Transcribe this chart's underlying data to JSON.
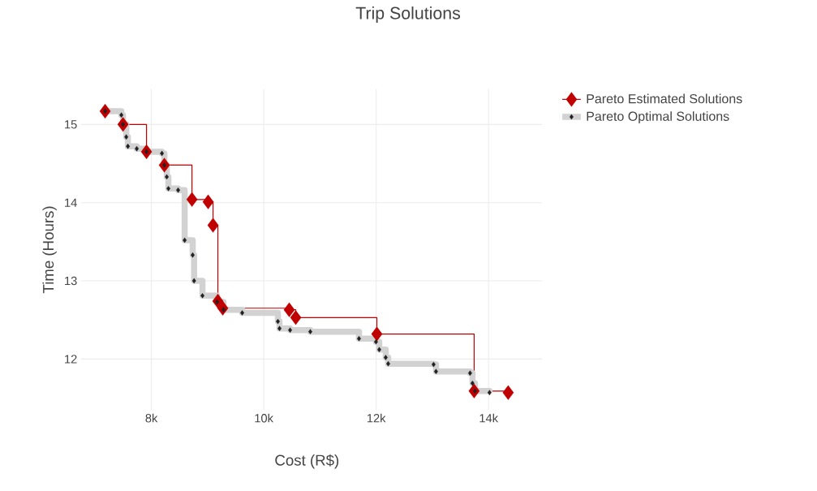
{
  "chart_data": {
    "type": "step",
    "title": "Trip Solutions",
    "xlabel": "Cost (R$)",
    "ylabel": "Time (Hours)",
    "xlim": [
      6750,
      14950
    ],
    "ylim": [
      11.35,
      15.45
    ],
    "xticks": [
      {
        "value": 8000,
        "label": "8k"
      },
      {
        "value": 10000,
        "label": "10k"
      },
      {
        "value": 12000,
        "label": "12k"
      },
      {
        "value": 14000,
        "label": "14k"
      }
    ],
    "yticks": [
      12,
      13,
      14,
      15
    ],
    "grid": true,
    "legend": "top right",
    "marker": "diamond",
    "series": [
      {
        "name": "Pareto Estimated Solutions",
        "color": "#c00000",
        "x": [
          7177,
          7495,
          7913,
          8231,
          8722,
          9010,
          9097,
          9183,
          9270,
          10453,
          10569,
          12012,
          13743,
          14349
        ],
        "values": [
          15.17,
          15.0,
          14.65,
          14.48,
          14.04,
          14.01,
          13.71,
          12.74,
          12.65,
          12.63,
          12.53,
          12.32,
          11.59,
          11.57
        ]
      },
      {
        "name": "Pareto Optimal Solutions",
        "color": "#222222",
        "x": [
          7177,
          7466,
          7495,
          7553,
          7582,
          7740,
          7913,
          8188,
          8231,
          8274,
          8303,
          8476,
          8592,
          8735,
          8760,
          8909,
          9169,
          9284,
          9616,
          10251,
          10280,
          10468,
          10828,
          11694,
          11997,
          12055,
          12170,
          12214,
          13022,
          13065,
          13671,
          13714,
          13758,
          14017
        ],
        "values": [
          15.17,
          15.12,
          15.0,
          14.84,
          14.72,
          14.69,
          14.65,
          14.63,
          14.48,
          14.33,
          14.18,
          14.16,
          13.52,
          13.33,
          13.0,
          12.81,
          12.73,
          12.63,
          12.59,
          12.48,
          12.39,
          12.37,
          12.35,
          12.26,
          12.22,
          12.12,
          12.02,
          11.94,
          11.93,
          11.84,
          11.82,
          11.69,
          11.59,
          11.57
        ]
      }
    ]
  }
}
